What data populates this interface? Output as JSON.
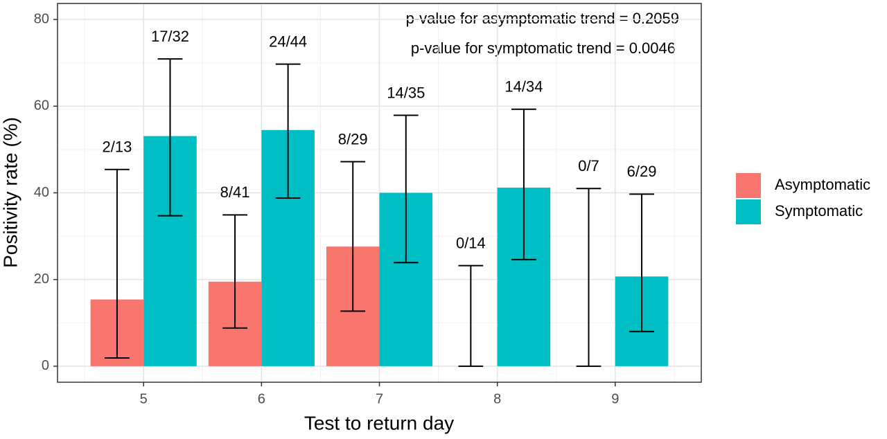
{
  "chart_data": {
    "type": "bar",
    "x_label": "Test to return day",
    "y_label": "Positivity rate (%)",
    "x": [
      5,
      6,
      7,
      8,
      9
    ],
    "xlim": [
      4.27,
      9.73
    ],
    "xticks": [
      5,
      6,
      7,
      8,
      9
    ],
    "ylim": [
      -3.7,
      83.7
    ],
    "yticks": [
      0,
      20,
      40,
      60,
      80
    ],
    "grid": true,
    "legend_position": "right",
    "series": [
      {
        "name": "Asymptomatic",
        "color": "#f8766d",
        "values": [
          15.4,
          19.5,
          27.6,
          0,
          0
        ],
        "ci_low": [
          1.9,
          8.8,
          12.7,
          0,
          0
        ],
        "ci_high": [
          45.4,
          34.9,
          47.2,
          23.2,
          41.0
        ],
        "counts": [
          "2/13",
          "8/41",
          "8/29",
          "0/14",
          "0/7"
        ]
      },
      {
        "name": "Symptomatic",
        "color": "#00bfc4",
        "values": [
          53.1,
          54.5,
          40.0,
          41.2,
          20.7
        ],
        "ci_low": [
          34.7,
          38.8,
          23.9,
          24.6,
          8.0
        ],
        "ci_high": [
          70.9,
          69.7,
          57.9,
          59.3,
          39.7
        ],
        "counts": [
          "17/32",
          "24/44",
          "14/35",
          "14/34",
          "6/29"
        ]
      }
    ],
    "annotations": [
      "p-value for asymptomatic trend = 0.2059",
      "p-value for symptomatic trend = 0.0046"
    ]
  }
}
